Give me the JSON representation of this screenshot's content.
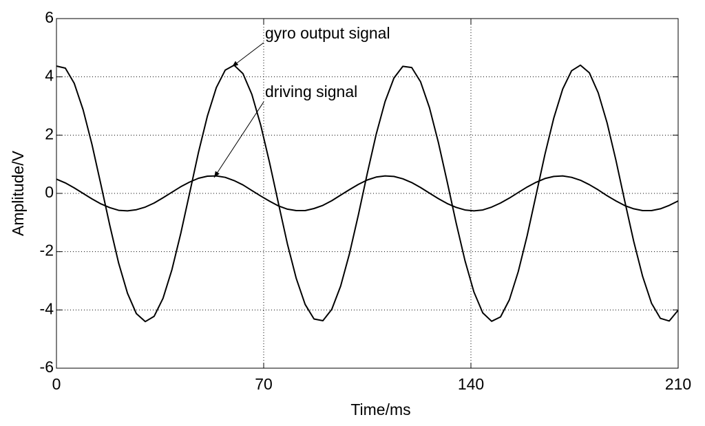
{
  "chart_data": {
    "type": "line",
    "x_label": "Time/ms",
    "y_label": "Amplitude/V",
    "annotations": [
      "gyro output signal",
      "driving signal"
    ],
    "x": [
      0,
      3,
      6,
      9,
      12,
      15,
      18,
      21,
      24,
      27,
      30,
      33,
      36,
      39,
      42,
      45,
      48,
      51,
      54,
      57,
      60,
      63,
      66,
      69,
      72,
      75,
      78,
      81,
      84,
      87,
      90,
      93,
      96,
      99,
      102,
      105,
      108,
      111,
      114,
      117,
      120,
      123,
      126,
      129,
      132,
      135,
      138,
      141,
      144,
      147,
      150,
      153,
      156,
      159,
      162,
      165,
      168,
      171,
      174,
      177,
      180,
      183,
      186,
      189,
      192,
      195,
      198,
      201,
      204,
      207,
      210
    ],
    "series": [
      {
        "name": "gyro output signal",
        "color": "#000000",
        "values": [
          4.37,
          4.3,
          3.78,
          2.87,
          1.68,
          0.31,
          -1.09,
          -2.39,
          -3.43,
          -4.13,
          -4.4,
          -4.22,
          -3.6,
          -2.62,
          -1.37,
          0.02,
          1.42,
          2.66,
          3.63,
          4.23,
          4.4,
          4.11,
          3.4,
          2.34,
          1.05,
          -0.35,
          -1.73,
          -2.92,
          -3.81,
          -4.31,
          -4.37,
          -3.98,
          -3.18,
          -2.06,
          -0.73,
          0.69,
          2.03,
          3.15,
          3.96,
          4.36,
          4.32,
          3.83,
          2.94,
          1.75,
          0.39,
          -1.01,
          -2.31,
          -3.38,
          -4.1,
          -4.39,
          -4.24,
          -3.65,
          -2.68,
          -1.45,
          -0.06,
          1.34,
          2.59,
          3.58,
          4.21,
          4.4,
          4.14,
          3.45,
          2.42,
          1.13,
          -0.28,
          -1.65,
          -2.85,
          -3.77,
          -4.29,
          -4.38,
          -4.01
        ]
      },
      {
        "name": "driving signal",
        "color": "#000000",
        "values": [
          0.49,
          0.36,
          0.19,
          0.0,
          -0.19,
          -0.36,
          -0.49,
          -0.58,
          -0.6,
          -0.56,
          -0.47,
          -0.33,
          -0.15,
          0.04,
          0.23,
          0.39,
          0.52,
          0.59,
          0.6,
          0.55,
          0.44,
          0.29,
          0.1,
          -0.09,
          -0.27,
          -0.43,
          -0.54,
          -0.59,
          -0.59,
          -0.52,
          -0.41,
          -0.25,
          -0.06,
          0.13,
          0.31,
          0.46,
          0.56,
          0.6,
          0.58,
          0.5,
          0.37,
          0.2,
          0.01,
          -0.18,
          -0.35,
          -0.48,
          -0.57,
          -0.6,
          -0.57,
          -0.47,
          -0.33,
          -0.16,
          0.03,
          0.22,
          0.38,
          0.51,
          0.58,
          0.6,
          0.55,
          0.45,
          0.3,
          0.12,
          -0.08,
          -0.26,
          -0.42,
          -0.53,
          -0.59,
          -0.59,
          -0.53,
          -0.41,
          -0.26
        ]
      }
    ],
    "xlim": [
      0,
      210
    ],
    "xticks": [
      0,
      70,
      140,
      210
    ],
    "ylim": [
      -6,
      6
    ],
    "yticks": [
      -6,
      -4,
      -2,
      0,
      2,
      4,
      6
    ],
    "grid": true
  }
}
